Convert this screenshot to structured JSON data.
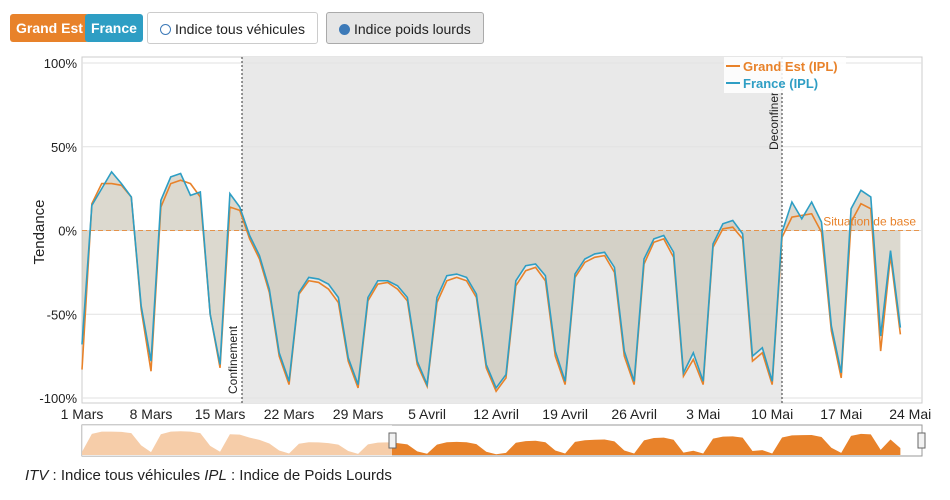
{
  "controls": {
    "regions": [
      "Grand Est",
      "France"
    ],
    "indices": [
      "Indice tous véhicules",
      "Indice poids lourds"
    ]
  },
  "chart_data": {
    "type": "line",
    "y_label": "Tendance",
    "baseline_label": "Situation de base",
    "confinement_label": "Confinement",
    "deconfinement_label": "Deconfiner",
    "categories": [
      "1 Mars",
      null,
      null,
      null,
      null,
      null,
      null,
      "8 Mars",
      null,
      null,
      null,
      null,
      null,
      null,
      "15 Mars",
      null,
      null,
      null,
      null,
      null,
      null,
      "22 Mars",
      null,
      null,
      null,
      null,
      null,
      null,
      "29 Mars",
      null,
      null,
      null,
      null,
      null,
      null,
      "5 Avril",
      null,
      null,
      null,
      null,
      null,
      null,
      "12 Avril",
      null,
      null,
      null,
      null,
      null,
      null,
      "19 Avril",
      null,
      null,
      null,
      null,
      null,
      null,
      "26 Avril",
      null,
      null,
      null,
      null,
      null,
      null,
      "3 Mai",
      null,
      null,
      null,
      null,
      null,
      null,
      "10 Mai",
      null,
      null,
      null,
      null,
      null,
      null,
      "17 Mai",
      null,
      null,
      null,
      null,
      null,
      null,
      "24 Mai"
    ],
    "series": [
      {
        "name": "Grand Est (IPL)",
        "color": "#e8822a",
        "values": [
          -83,
          16,
          28,
          28,
          27,
          20,
          -47,
          -84,
          14,
          28,
          30,
          28,
          20,
          -50,
          -82,
          14,
          12,
          -5,
          -17,
          -37,
          -75,
          -92,
          -38,
          -30,
          -31,
          -35,
          -43,
          -78,
          -94,
          -42,
          -32,
          -31,
          -35,
          -42,
          -80,
          -93,
          -43,
          -30,
          -28,
          -30,
          -40,
          -82,
          -96,
          -88,
          -33,
          -24,
          -22,
          -30,
          -75,
          -92,
          -28,
          -19,
          -16,
          -15,
          -25,
          -75,
          -92,
          -20,
          -7,
          -5,
          -16,
          -87,
          -77,
          -92,
          -10,
          1,
          2,
          -5,
          -78,
          -73,
          -92,
          -4,
          8,
          9,
          10,
          -1,
          -60,
          -88,
          5,
          16,
          13,
          -72,
          -15,
          -62,
          null
        ]
      },
      {
        "name": "France (IPL)",
        "color": "#2e9ec4",
        "values": [
          -68,
          15,
          25,
          35,
          28,
          20,
          -45,
          -78,
          18,
          32,
          34,
          21,
          23,
          -50,
          -80,
          22,
          14,
          -3,
          -15,
          -35,
          -73,
          -90,
          -37,
          -28,
          -29,
          -32,
          -40,
          -76,
          -92,
          -40,
          -30,
          -30,
          -33,
          -40,
          -78,
          -92,
          -40,
          -27,
          -26,
          -28,
          -38,
          -80,
          -94,
          -86,
          -30,
          -21,
          -20,
          -27,
          -72,
          -90,
          -26,
          -17,
          -14,
          -13,
          -22,
          -72,
          -90,
          -17,
          -5,
          -3,
          -13,
          -85,
          -73,
          -90,
          -8,
          4,
          6,
          -2,
          -75,
          -70,
          -90,
          -1,
          17,
          7,
          17,
          5,
          -57,
          -85,
          13,
          24,
          20,
          -63,
          -12,
          -58,
          null
        ]
      }
    ],
    "ylim": [
      -100,
      100
    ],
    "yticks": [
      {
        "value": 100,
        "label": "100%"
      },
      {
        "value": 50,
        "label": "50%"
      },
      {
        "value": 0,
        "label": "0%"
      },
      {
        "value": -50,
        "label": "-50%"
      },
      {
        "value": -100,
        "label": "-100%"
      }
    ],
    "grid": true
  },
  "footer": [
    {
      "text": "ITV",
      "italic": true
    },
    {
      "text": " : Indice tous véhicules ",
      "italic": false
    },
    {
      "text": "IPL",
      "italic": true
    },
    {
      "text": " : Indice de Poids Lourds",
      "italic": false
    }
  ]
}
